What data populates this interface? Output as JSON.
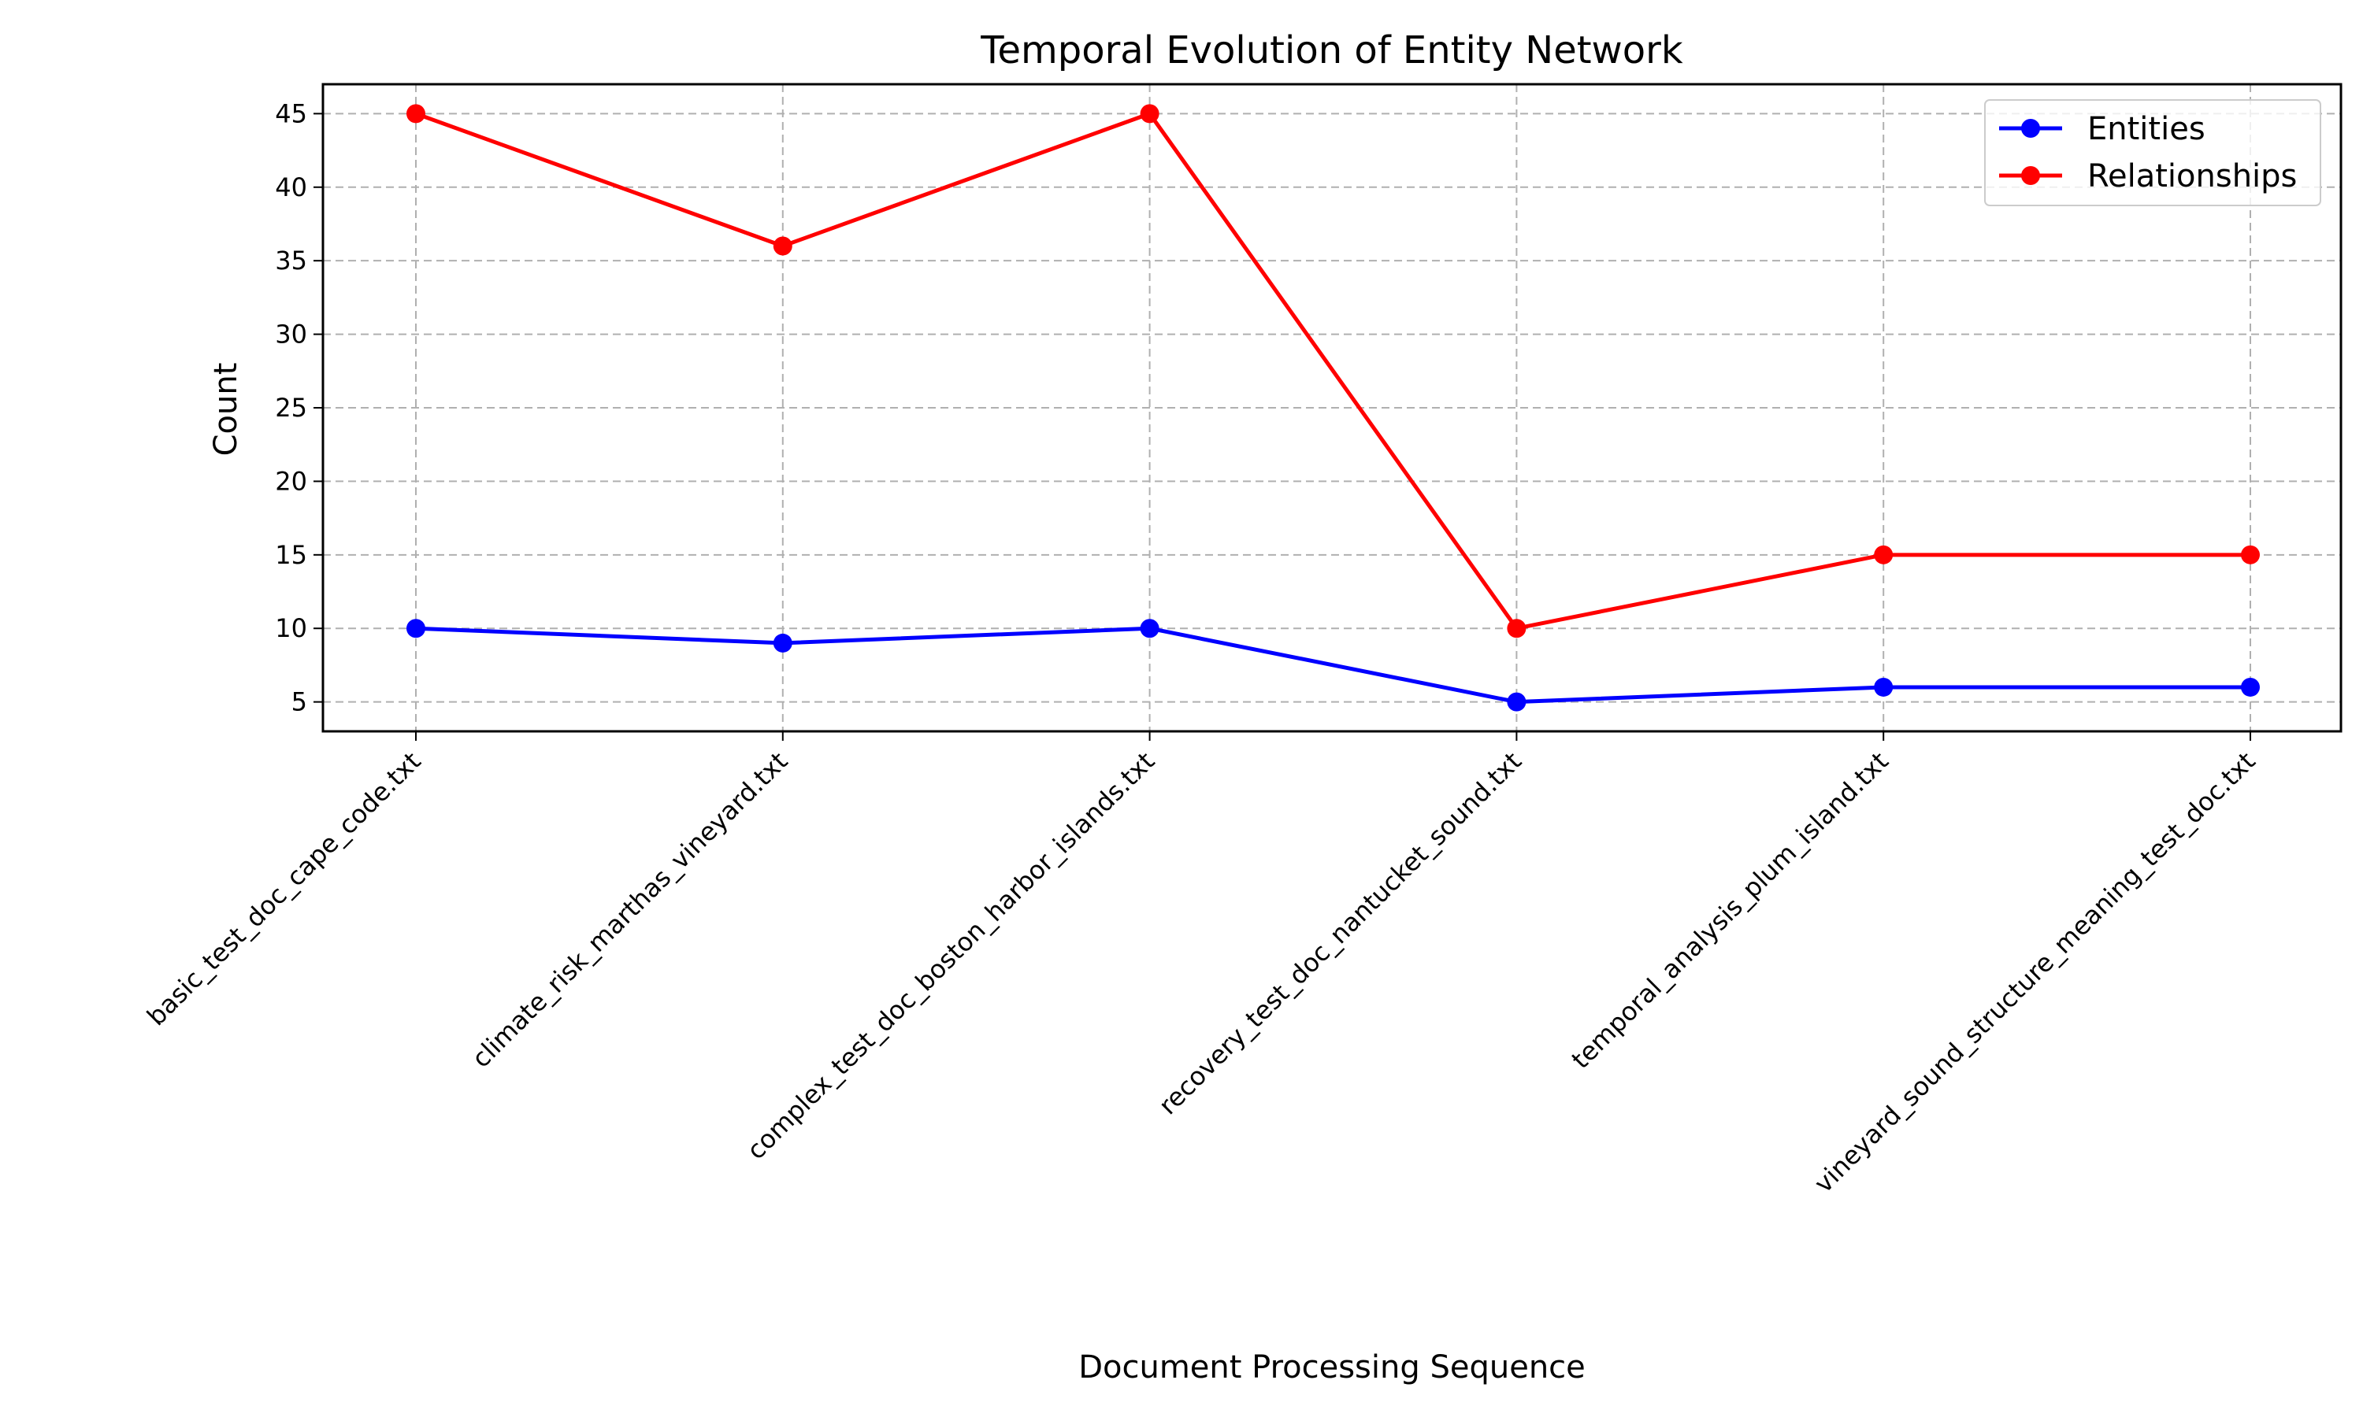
{
  "chart_data": {
    "type": "line",
    "title": "Temporal Evolution of Entity Network",
    "xlabel": "Document Processing Sequence",
    "ylabel": "Count",
    "categories": [
      "basic_test_doc_cape_code.txt",
      "climate_risk_marthas_vineyard.txt",
      "complex_test_doc_boston_harbor_islands.txt",
      "recovery_test_doc_nantucket_sound.txt",
      "temporal_analysis_plum_island.txt",
      "vineyard_sound_structure_meaning_test_doc.txt"
    ],
    "series": [
      {
        "name": "Entities",
        "color": "#0000ff",
        "marker": "circle",
        "values": [
          10,
          9,
          10,
          5,
          6,
          6
        ]
      },
      {
        "name": "Relationships",
        "color": "#ff0000",
        "marker": "circle",
        "values": [
          45,
          36,
          45,
          10,
          15,
          15
        ]
      }
    ],
    "ylim": [
      3,
      47
    ],
    "yticks": [
      5,
      10,
      15,
      20,
      25,
      30,
      35,
      40,
      45
    ],
    "grid": true,
    "legend_position": "top-right"
  }
}
